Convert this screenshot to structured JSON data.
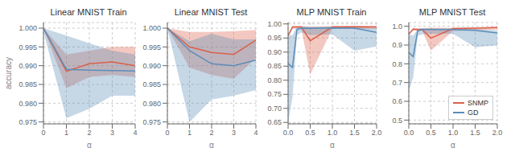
{
  "chart_data": [
    {
      "type": "line",
      "title": "Linear MNIST Train",
      "xlabel": "α",
      "ylabel": "accuracy",
      "x": [
        0,
        1,
        2,
        3,
        4
      ],
      "xlim": [
        0,
        4
      ],
      "xticks": [
        0,
        1,
        2,
        3,
        4
      ],
      "ylim": [
        0.9745,
        1.0015
      ],
      "yticks": [
        0.975,
        {
          "value": 0.98,
          "label": "0.980"
        },
        0.985,
        {
          "value": 0.99,
          "label": "0.990"
        },
        0.995,
        {
          "value": 1.0,
          "label": "1.000"
        }
      ],
      "grid": true,
      "series": [
        {
          "name": "SNMP",
          "color": "#d9604a",
          "values": [
            1.0,
            0.9885,
            0.9905,
            0.991,
            0.99
          ],
          "lower": [
            1.0,
            0.984,
            0.987,
            0.9875,
            0.987
          ],
          "upper": [
            1.0,
            0.993,
            0.994,
            0.995,
            0.995
          ]
        },
        {
          "name": "GD",
          "color": "#5b8db8",
          "values": [
            1.0,
            0.989,
            0.9888,
            0.9887,
            0.9886
          ],
          "lower": [
            0.999,
            0.976,
            0.9785,
            0.982,
            0.982
          ],
          "upper": [
            1.0,
            0.998,
            0.996,
            0.994,
            0.993
          ]
        }
      ]
    },
    {
      "type": "line",
      "title": "Linear MNIST Test",
      "xlabel": "α",
      "x": [
        0,
        1,
        2,
        3,
        4
      ],
      "xlim": [
        0,
        4
      ],
      "xticks": [
        0,
        1,
        2,
        3,
        4
      ],
      "ylim": [
        0.9745,
        1.0015
      ],
      "yticks": [
        0.975,
        {
          "value": 0.98,
          "label": "0.980"
        },
        0.985,
        {
          "value": 0.99,
          "label": "0.990"
        },
        0.995,
        {
          "value": 1.0,
          "label": "1.000"
        }
      ],
      "grid": true,
      "series": [
        {
          "name": "SNMP",
          "color": "#d9604a",
          "values": [
            1.0,
            0.995,
            0.9935,
            0.993,
            0.9968
          ],
          "lower": [
            1.0,
            0.9895,
            0.9875,
            0.9865,
            0.992
          ],
          "upper": [
            1.0,
            0.999,
            0.999,
            0.9992,
            0.9995
          ]
        },
        {
          "name": "GD",
          "color": "#5b8db8",
          "values": [
            1.0,
            0.994,
            0.9905,
            0.99,
            0.9915
          ],
          "lower": [
            1.0,
            0.975,
            0.981,
            0.982,
            0.9835
          ],
          "upper": [
            1.0,
            0.9965,
            0.9985,
            0.997,
            0.997
          ]
        }
      ]
    },
    {
      "type": "line",
      "title": "MLP MNIST Train",
      "xlabel": "α",
      "x": [
        0.0,
        0.1,
        0.2,
        0.3,
        0.5,
        1.0,
        1.5,
        2.0
      ],
      "xlim": [
        0,
        2
      ],
      "xticks": [
        {
          "value": 0,
          "label": "0.0"
        },
        0.5,
        {
          "value": 1,
          "label": "1.0"
        },
        1.5,
        {
          "value": 2,
          "label": "2.0"
        }
      ],
      "ylim": [
        0.645,
        1.005
      ],
      "yticks": [
        0.65,
        {
          "value": 0.7,
          "label": "0.70"
        },
        0.75,
        {
          "value": 0.8,
          "label": "0.80"
        },
        0.85,
        {
          "value": 0.9,
          "label": "0.90"
        },
        0.95,
        {
          "value": 1.0,
          "label": "1.00"
        }
      ],
      "grid": true,
      "series": [
        {
          "name": "SNMP",
          "color": "#d9604a",
          "values": [
            0.958,
            0.989,
            0.989,
            0.989,
            0.94,
            0.989,
            0.99,
            0.989
          ],
          "lower": [
            0.958,
            0.983,
            0.983,
            0.983,
            0.82,
            0.983,
            0.983,
            0.983
          ],
          "upper": [
            0.958,
            0.993,
            0.993,
            0.993,
            0.99,
            0.993,
            0.993,
            0.993
          ]
        },
        {
          "name": "GD",
          "color": "#5b8db8",
          "values": [
            0.86,
            0.845,
            0.98,
            0.985,
            0.984,
            0.986,
            0.985,
            0.97
          ],
          "lower": [
            0.65,
            0.74,
            0.96,
            0.97,
            0.96,
            0.963,
            0.905,
            0.92
          ],
          "upper": [
            0.96,
            0.96,
            0.99,
            0.991,
            0.99,
            0.99,
            0.99,
            0.985
          ]
        }
      ]
    },
    {
      "type": "line",
      "title": "MLP MNIST Test",
      "xlabel": "α",
      "x": [
        0.0,
        0.1,
        0.2,
        0.3,
        0.5,
        1.0,
        1.5,
        2.0
      ],
      "xlim": [
        0,
        2
      ],
      "xticks": [
        {
          "value": 0,
          "label": "0.0"
        },
        0.5,
        {
          "value": 1,
          "label": "1.0"
        },
        1.5,
        {
          "value": 2,
          "label": "2.0"
        }
      ],
      "ylim": [
        0.48,
        1.02
      ],
      "yticks": [
        0.5,
        0.6,
        0.7,
        0.8,
        0.9,
        {
          "value": 1.0,
          "label": "1.0"
        }
      ],
      "grid": true,
      "legend": "lower right",
      "series": [
        {
          "name": "SNMP",
          "color": "#d9604a",
          "values": [
            0.958,
            0.985,
            0.983,
            0.983,
            0.937,
            0.988,
            0.99,
            0.993
          ],
          "lower": [
            0.958,
            0.978,
            0.977,
            0.977,
            0.87,
            0.975,
            0.978,
            0.982
          ],
          "upper": [
            0.958,
            0.992,
            0.99,
            0.99,
            0.992,
            0.992,
            0.993,
            0.997
          ]
        },
        {
          "name": "GD",
          "color": "#5b8db8",
          "values": [
            0.86,
            0.838,
            0.975,
            0.982,
            0.982,
            0.982,
            0.978,
            0.964
          ],
          "lower": [
            0.65,
            0.73,
            0.948,
            0.958,
            0.96,
            0.96,
            0.888,
            0.898
          ],
          "upper": [
            0.958,
            0.95,
            0.985,
            0.99,
            0.99,
            0.988,
            0.985,
            0.978
          ]
        }
      ]
    }
  ]
}
